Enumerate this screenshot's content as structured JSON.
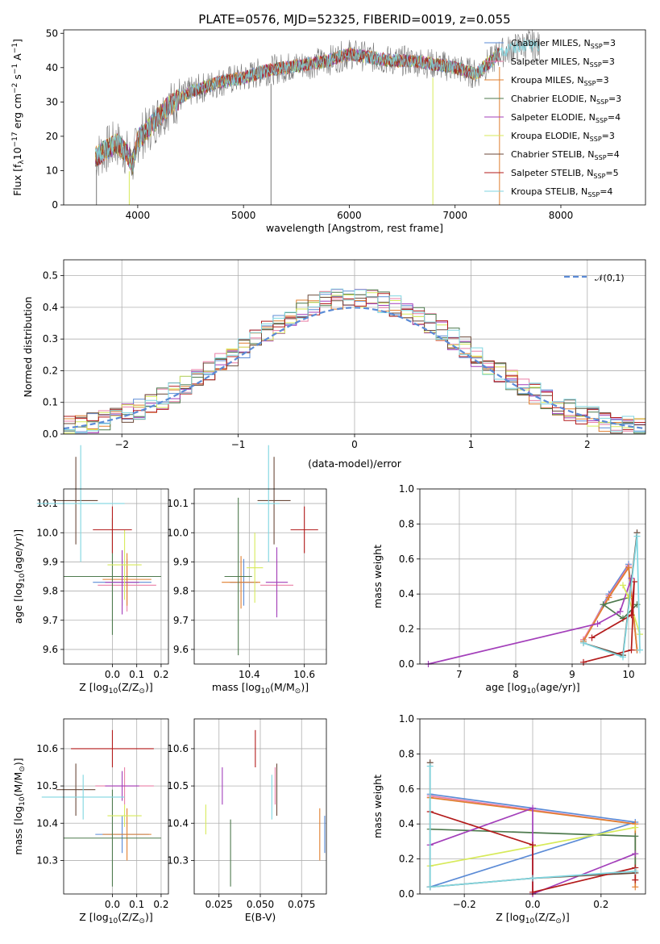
{
  "figure_title": "PLATE=0576, MJD=52325, FIBERID=0019, z=0.055",
  "colors": {
    "Chabrier MILES": "#5b8bd6",
    "Salpeter MILES": "#ea7fa6",
    "Kroupa MILES": "#e07f2f",
    "Chabrier ELODIE": "#4e7a4e",
    "Salpeter ELODIE": "#a33fba",
    "Kroupa ELODIE": "#d7ea5a",
    "Chabrier STELIB": "#6b4a3a",
    "Salpeter STELIB": "#b31b1b",
    "Kroupa STELIB": "#7fd6e0",
    "normal": "#5b8bd6",
    "data": "#777777"
  },
  "chart_data": [
    {
      "type": "line",
      "title": "PLATE=0576, MJD=52325, FIBERID=0019, z=0.055",
      "xlabel": "wavelength [Angstrom, rest frame]",
      "ylabel": "Flux [f_λ10^-17 erg cm^-2 s^-1 A^-1]",
      "xlim": [
        3300,
        8800
      ],
      "ylim": [
        0,
        51
      ],
      "xticks": [
        "4000",
        "5000",
        "6000",
        "7000",
        "8000"
      ],
      "yticks": [
        "0",
        "10",
        "20",
        "30",
        "40",
        "50"
      ],
      "grid": false,
      "legend_position": "right",
      "series": [
        {
          "name": "Chabrier MILES, N_SSP=3"
        },
        {
          "name": "Salpeter MILES, N_SSP=3"
        },
        {
          "name": "Kroupa MILES, N_SSP=3"
        },
        {
          "name": "Chabrier ELODIE, N_SSP=3"
        },
        {
          "name": "Salpeter ELODIE, N_SSP=4"
        },
        {
          "name": "Kroupa ELODIE, N_SSP=3"
        },
        {
          "name": "Chabrier STELIB, N_SSP=4"
        },
        {
          "name": "Salpeter STELIB, N_SSP=5"
        },
        {
          "name": "Kroupa STELIB, N_SSP=4"
        }
      ],
      "continuum": {
        "x": [
          3600,
          3700,
          3800,
          3900,
          3950,
          4000,
          4100,
          4200,
          4300,
          4400,
          4500,
          4600,
          4800,
          5000,
          5200,
          5400,
          5600,
          5800,
          6000,
          6200,
          6400,
          6600,
          6800,
          7000,
          7100,
          7200,
          7300,
          7350,
          7400,
          7500,
          7600,
          7700,
          7800
        ],
        "y": [
          14,
          16,
          18,
          15,
          12,
          19,
          22,
          26,
          29,
          31,
          33,
          34,
          36,
          37,
          39,
          40,
          41,
          42,
          44,
          43,
          42,
          42,
          41,
          40,
          39,
          38,
          41,
          42,
          44,
          45,
          46,
          47,
          46
        ]
      }
    },
    {
      "type": "histogram",
      "xlabel": "(data-model)/error",
      "ylabel": "Normed distribution",
      "xlim": [
        -2.5,
        2.5
      ],
      "ylim": [
        0,
        0.55
      ],
      "xticks": [
        "−2",
        "−1",
        "0",
        "1",
        "2"
      ],
      "yticks": [
        "0.0",
        "0.1",
        "0.2",
        "0.3",
        "0.4",
        "0.5"
      ],
      "grid": true,
      "legend": [
        "𝒩(0,1)"
      ],
      "legend_position": "top-right",
      "bin_width": 0.1
    },
    {
      "type": "scatter",
      "xlabel": "Z [log10(Z/Z☉)]",
      "ylabel": "age  [log10(age/yr)]",
      "xticks": [
        "0.0",
        "0.1",
        "0.2"
      ],
      "yticks": [
        "9.6",
        "9.7",
        "9.8",
        "9.9",
        "10.0",
        "10.1"
      ],
      "xlim": [
        -0.2,
        0.23
      ],
      "ylim": [
        9.55,
        10.15
      ],
      "grid": true,
      "points": [
        {
          "series": "Chabrier MILES",
          "x": 0.04,
          "y": 9.83,
          "xerr": 0.12,
          "yerr": 0.08
        },
        {
          "series": "Salpeter MILES",
          "x": 0.06,
          "y": 9.82,
          "xerr": 0.12,
          "yerr": 0.09
        },
        {
          "series": "Kroupa MILES",
          "x": 0.06,
          "y": 9.84,
          "xerr": 0.1,
          "yerr": 0.09
        },
        {
          "series": "Chabrier ELODIE",
          "x": 0.0,
          "y": 9.85,
          "xerr": 0.2,
          "yerr": 0.2
        },
        {
          "series": "Salpeter ELODIE",
          "x": 0.04,
          "y": 9.83,
          "xerr": 0.07,
          "yerr": 0.11
        },
        {
          "series": "Kroupa ELODIE",
          "x": 0.05,
          "y": 9.89,
          "xerr": 0.07,
          "yerr": 0.12
        },
        {
          "series": "Chabrier STELIB",
          "x": -0.15,
          "y": 10.11,
          "xerr": 0.09,
          "yerr": 0.15
        },
        {
          "series": "Salpeter STELIB",
          "x": 0.0,
          "y": 10.01,
          "xerr": 0.08,
          "yerr": 0.08
        },
        {
          "series": "Kroupa STELIB",
          "x": -0.13,
          "y": 10.1,
          "xerr": 0.18,
          "yerr": 0.2
        }
      ]
    },
    {
      "type": "scatter",
      "xlabel": "mass [log10(M/M☉)]",
      "xticks": [
        "10.4",
        "10.6"
      ],
      "yticks": [
        "9.6",
        "9.7",
        "9.8",
        "9.9",
        "10.0",
        "10.1"
      ],
      "xlim": [
        10.2,
        10.68
      ],
      "ylim": [
        9.55,
        10.15
      ],
      "grid": true,
      "points": [
        {
          "series": "Chabrier MILES",
          "x": 10.38,
          "y": 9.83,
          "xerr": 0.05,
          "yerr": 0.08
        },
        {
          "series": "Salpeter MILES",
          "x": 10.5,
          "y": 9.82,
          "xerr": 0.06,
          "yerr": 0.09
        },
        {
          "series": "Kroupa MILES",
          "x": 10.37,
          "y": 9.83,
          "xerr": 0.07,
          "yerr": 0.09
        },
        {
          "series": "Chabrier ELODIE",
          "x": 10.36,
          "y": 9.85,
          "xerr": 0.05,
          "yerr": 0.27
        },
        {
          "series": "Salpeter ELODIE",
          "x": 10.5,
          "y": 9.83,
          "xerr": 0.04,
          "yerr": 0.12
        },
        {
          "series": "Kroupa ELODIE",
          "x": 10.42,
          "y": 9.88,
          "xerr": 0.03,
          "yerr": 0.12
        },
        {
          "series": "Chabrier STELIB",
          "x": 10.49,
          "y": 10.11,
          "xerr": 0.06,
          "yerr": 0.15
        },
        {
          "series": "Salpeter STELIB",
          "x": 10.6,
          "y": 10.01,
          "xerr": 0.05,
          "yerr": 0.08
        },
        {
          "series": "Kroupa STELIB",
          "x": 10.47,
          "y": 10.1,
          "xerr": 0.04,
          "yerr": 0.2
        }
      ]
    },
    {
      "type": "line",
      "xlabel": "age  [log10(age/yr)]",
      "ylabel": "mass weight",
      "xticks": [
        "7",
        "8",
        "9",
        "10"
      ],
      "yticks": [
        "0.0",
        "0.2",
        "0.4",
        "0.6",
        "0.8",
        "1.0"
      ],
      "xlim": [
        6.3,
        10.3
      ],
      "ylim": [
        0,
        1.0
      ],
      "grid": true,
      "series": [
        {
          "x": [
            10.15,
            10.0,
            9.65,
            9.2
          ],
          "y": [
            0.08,
            0.57,
            0.4,
            0.13
          ],
          "series": "Chabrier MILES"
        },
        {
          "x": [
            10.15,
            10.0,
            9.65,
            9.2
          ],
          "y": [
            0.08,
            0.56,
            0.39,
            0.14
          ],
          "series": "Salpeter MILES"
        },
        {
          "x": [
            10.15,
            10.0,
            9.65,
            9.2
          ],
          "y": [
            0.08,
            0.55,
            0.38,
            0.13
          ],
          "series": "Kroupa MILES"
        },
        {
          "x": [
            10.0,
            9.55,
            9.9,
            10.15
          ],
          "y": [
            0.38,
            0.34,
            0.26,
            0.34
          ],
          "series": "Chabrier ELODIE"
        },
        {
          "x": [
            6.45,
            9.45,
            9.85,
            10.05
          ],
          "y": [
            0.0,
            0.23,
            0.3,
            0.49
          ],
          "series": "Salpeter ELODIE"
        },
        {
          "x": [
            9.9,
            10.0,
            10.2
          ],
          "y": [
            0.45,
            0.38,
            0.17
          ],
          "series": "Kroupa ELODIE"
        },
        {
          "x": [
            9.2,
            9.9,
            10.15
          ],
          "y": [
            0.12,
            0.05,
            0.75
          ],
          "series": "Chabrier STELIB"
        },
        {
          "x": [
            9.35,
            10.05,
            10.1,
            10.05,
            9.2
          ],
          "y": [
            0.15,
            0.28,
            0.47,
            0.08,
            0.01
          ],
          "series": "Salpeter STELIB"
        },
        {
          "x": [
            9.2,
            9.9,
            10.15,
            10.2
          ],
          "y": [
            0.12,
            0.04,
            0.73,
            0.08
          ],
          "series": "Kroupa STELIB"
        }
      ]
    },
    {
      "type": "scatter",
      "xlabel": "Z [log10(Z/Z☉)]",
      "ylabel": "mass [log10(M/M☉)]",
      "xticks": [
        "0.0",
        "0.1",
        "0.2"
      ],
      "yticks": [
        "10.3",
        "10.4",
        "10.5",
        "10.6"
      ],
      "xlim": [
        -0.2,
        0.23
      ],
      "ylim": [
        10.21,
        10.68
      ],
      "grid": true,
      "points": [
        {
          "series": "Chabrier MILES",
          "x": 0.04,
          "y": 10.37,
          "xerr": 0.11,
          "yerr": 0.05
        },
        {
          "series": "Salpeter MILES",
          "x": 0.05,
          "y": 10.5,
          "xerr": 0.12,
          "yerr": 0.05
        },
        {
          "series": "Kroupa MILES",
          "x": 0.06,
          "y": 10.37,
          "xerr": 0.1,
          "yerr": 0.07
        },
        {
          "series": "Chabrier ELODIE",
          "x": 0.0,
          "y": 10.36,
          "xerr": 0.2,
          "yerr": 0.13
        },
        {
          "series": "Salpeter ELODIE",
          "x": 0.04,
          "y": 10.5,
          "xerr": 0.07,
          "yerr": 0.04
        },
        {
          "series": "Kroupa ELODIE",
          "x": 0.05,
          "y": 10.42,
          "xerr": 0.07,
          "yerr": 0.03
        },
        {
          "series": "Chabrier STELIB",
          "x": -0.15,
          "y": 10.49,
          "xerr": 0.08,
          "yerr": 0.07
        },
        {
          "series": "Salpeter STELIB",
          "x": 0.0,
          "y": 10.6,
          "xerr": 0.17,
          "yerr": 0.05
        },
        {
          "series": "Kroupa STELIB",
          "x": -0.12,
          "y": 10.47,
          "xerr": 0.17,
          "yerr": 0.06
        }
      ]
    },
    {
      "type": "scatter",
      "xlabel": "E(B-V)",
      "xticks": [
        "0.025",
        "0.050",
        "0.075"
      ],
      "yticks": [
        "10.3",
        "10.4",
        "10.5",
        "10.6"
      ],
      "xlim": [
        0.01,
        0.09
      ],
      "ylim": [
        10.21,
        10.68
      ],
      "grid": true,
      "points": [
        {
          "series": "Chabrier MILES",
          "x": 0.089,
          "y": 10.37,
          "yerr": 0.05
        },
        {
          "series": "Salpeter MILES",
          "x": 0.059,
          "y": 10.5,
          "yerr": 0.05
        },
        {
          "series": "Kroupa MILES",
          "x": 0.086,
          "y": 10.37,
          "yerr": 0.07
        },
        {
          "series": "Chabrier ELODIE",
          "x": 0.032,
          "y": 10.32,
          "yerr": 0.09
        },
        {
          "series": "Salpeter ELODIE",
          "x": 0.027,
          "y": 10.5,
          "yerr": 0.05
        },
        {
          "series": "Kroupa ELODIE",
          "x": 0.017,
          "y": 10.41,
          "yerr": 0.04
        },
        {
          "series": "Chabrier STELIB",
          "x": 0.06,
          "y": 10.49,
          "yerr": 0.07
        },
        {
          "series": "Salpeter STELIB",
          "x": 0.047,
          "y": 10.6,
          "yerr": 0.05
        },
        {
          "series": "Kroupa STELIB",
          "x": 0.057,
          "y": 10.47,
          "yerr": 0.06
        }
      ]
    },
    {
      "type": "line",
      "xlabel": "Z [log10(Z/Z☉)]",
      "ylabel": "mass weight",
      "xticks": [
        "−0.2",
        "0.0",
        "0.2"
      ],
      "yticks": [
        "0.0",
        "0.2",
        "0.4",
        "0.6",
        "0.8",
        "1.0"
      ],
      "xlim": [
        -0.33,
        0.33
      ],
      "ylim": [
        0,
        1.0
      ],
      "grid": true,
      "series": [
        {
          "x": [
            -0.3,
            0.3,
            -0.3
          ],
          "y": [
            0.57,
            0.41,
            0.04
          ],
          "series": "Chabrier MILES"
        },
        {
          "x": [
            -0.3,
            0.3
          ],
          "y": [
            0.56,
            0.4
          ],
          "series": "Salpeter MILES"
        },
        {
          "x": [
            -0.3,
            0.3,
            0.3
          ],
          "y": [
            0.55,
            0.4,
            0.04
          ],
          "series": "Kroupa MILES"
        },
        {
          "x": [
            -0.3,
            0.3,
            0.3
          ],
          "y": [
            0.37,
            0.33,
            0.12
          ],
          "series": "Chabrier ELODIE"
        },
        {
          "x": [
            -0.3,
            0.0,
            0.0,
            0.3
          ],
          "y": [
            0.28,
            0.49,
            0.0,
            0.23
          ],
          "series": "Salpeter ELODIE"
        },
        {
          "x": [
            -0.3,
            0.3
          ],
          "y": [
            0.16,
            0.38
          ],
          "series": "Kroupa ELODIE"
        },
        {
          "x": [
            -0.3,
            -0.3,
            0.0,
            0.3
          ],
          "y": [
            0.75,
            0.04,
            0.09,
            0.12
          ],
          "series": "Chabrier STELIB"
        },
        {
          "x": [
            -0.3,
            0.0,
            0.0,
            0.3,
            0.3
          ],
          "y": [
            0.47,
            0.28,
            0.01,
            0.15,
            0.08
          ],
          "series": "Salpeter STELIB"
        },
        {
          "x": [
            -0.3,
            -0.3,
            0.0,
            0.3
          ],
          "y": [
            0.73,
            0.04,
            0.09,
            0.13
          ],
          "series": "Kroupa STELIB"
        }
      ]
    }
  ]
}
